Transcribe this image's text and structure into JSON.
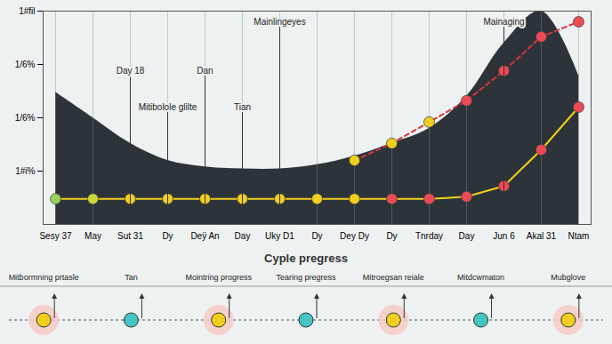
{
  "chart_data": {
    "type": "area",
    "title": "Cyple pregress",
    "categories": [
      "Sesy 37",
      "May",
      "Sut 31",
      "Dy",
      "Deÿ An",
      "Day",
      "Uky D1",
      "Dy",
      "Dey Dy",
      "Dy",
      "Tnrday",
      "Day",
      "Jun 6",
      "Akal 31",
      "Ntam"
    ],
    "series": [
      {
        "type": "area",
        "color": "#2d3439",
        "values": [
          62,
          50,
          38,
          30,
          27,
          26,
          26,
          28,
          32,
          38,
          45,
          60,
          85,
          100,
          70
        ]
      },
      {
        "type": "scatter",
        "marker": "circle",
        "colors": [
          "#9ad35a",
          "#c9d93a",
          "#f2cf1d",
          "#f2cf1d",
          "#f2cf1d",
          "#f2cf1d",
          "#f2cf1d",
          "#f2cf1d",
          "#f2cf1d",
          "#ee4a55",
          "#ee4a55",
          "#ee4a55",
          "#ee4a55",
          "#ee4a55",
          "#ee4a55"
        ],
        "values": [
          12,
          12,
          12,
          12,
          12,
          12,
          12,
          12,
          12,
          12,
          12,
          13,
          18,
          35,
          55
        ]
      },
      {
        "type": "line",
        "marker": "circle",
        "line_style": "dashed",
        "colors": [
          "#f2cf1d",
          "#f2cf1d",
          "#f2cf1d",
          "#ee4a55",
          "#ee4a55",
          "#ee4a55",
          "#ee4a55"
        ],
        "x": [
          8,
          9,
          10,
          11,
          12,
          13,
          14
        ],
        "values": [
          30,
          38,
          48,
          58,
          72,
          88,
          95
        ]
      }
    ],
    "ylim": [
      0,
      100
    ],
    "yticks": [
      {
        "value": 25,
        "label": "1#i%"
      },
      {
        "value": 50,
        "label": "1/6%"
      },
      {
        "value": 75,
        "label": "1/6%"
      },
      {
        "value": 100,
        "label": "1#fil"
      }
    ],
    "grid": true,
    "annotations": [
      {
        "text": "Mainlingeyes",
        "x": 6,
        "y": 95
      },
      {
        "text": "Mainaging",
        "x": 12,
        "y": 95
      },
      {
        "text": "Day 18",
        "x": 2,
        "y": 72
      },
      {
        "text": "Dan",
        "x": 4,
        "y": 72
      },
      {
        "text": "Mitibolole glilte",
        "x": 3,
        "y": 55
      },
      {
        "text": "Tian",
        "x": 5,
        "y": 55
      }
    ],
    "bottom_panel": {
      "labels": [
        "Mitbormning prtasle",
        "Tan",
        "Mointring progress",
        "Tearing pregress",
        "Mitroegsan reiale",
        "Mitdcwmaton",
        "Mubglove"
      ]
    }
  }
}
